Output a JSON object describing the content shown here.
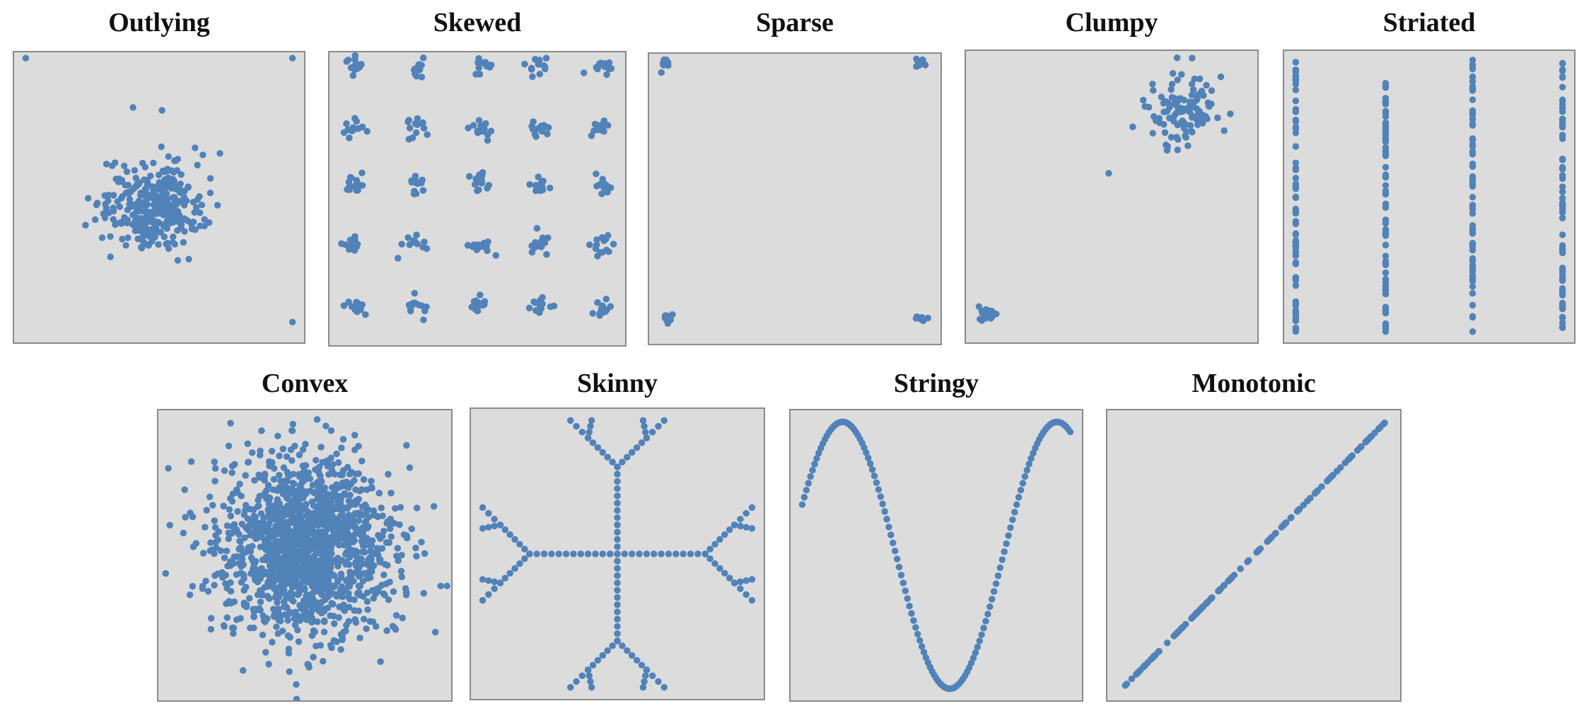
{
  "colors": {
    "point": "#5182b8",
    "background": "#dcdcdc",
    "border": "#8a8a8a"
  },
  "chart_data": [
    {
      "type": "scatter",
      "title": "Outlying",
      "generator": "outlying",
      "xlim": [
        0,
        1
      ],
      "ylim": [
        0,
        1
      ]
    },
    {
      "type": "scatter",
      "title": "Skewed",
      "generator": "skewed",
      "xlim": [
        0,
        1
      ],
      "ylim": [
        0,
        1
      ]
    },
    {
      "type": "scatter",
      "title": "Sparse",
      "generator": "sparse",
      "xlim": [
        0,
        1
      ],
      "ylim": [
        0,
        1
      ]
    },
    {
      "type": "scatter",
      "title": "Clumpy",
      "generator": "clumpy",
      "xlim": [
        0,
        1
      ],
      "ylim": [
        0,
        1
      ]
    },
    {
      "type": "scatter",
      "title": "Striated",
      "generator": "striated",
      "xlim": [
        0,
        1
      ],
      "ylim": [
        0,
        1
      ]
    },
    {
      "type": "scatter",
      "title": "Convex",
      "generator": "convex",
      "xlim": [
        0,
        1
      ],
      "ylim": [
        0,
        1
      ]
    },
    {
      "type": "scatter",
      "title": "Skinny",
      "generator": "skinny",
      "xlim": [
        0,
        1
      ],
      "ylim": [
        0,
        1
      ]
    },
    {
      "type": "scatter",
      "title": "Stringy",
      "generator": "stringy",
      "xlim": [
        0,
        1
      ],
      "ylim": [
        0,
        1
      ]
    },
    {
      "type": "scatter",
      "title": "Monotonic",
      "generator": "monotonic",
      "xlim": [
        0,
        1
      ],
      "ylim": [
        0,
        1
      ]
    }
  ]
}
